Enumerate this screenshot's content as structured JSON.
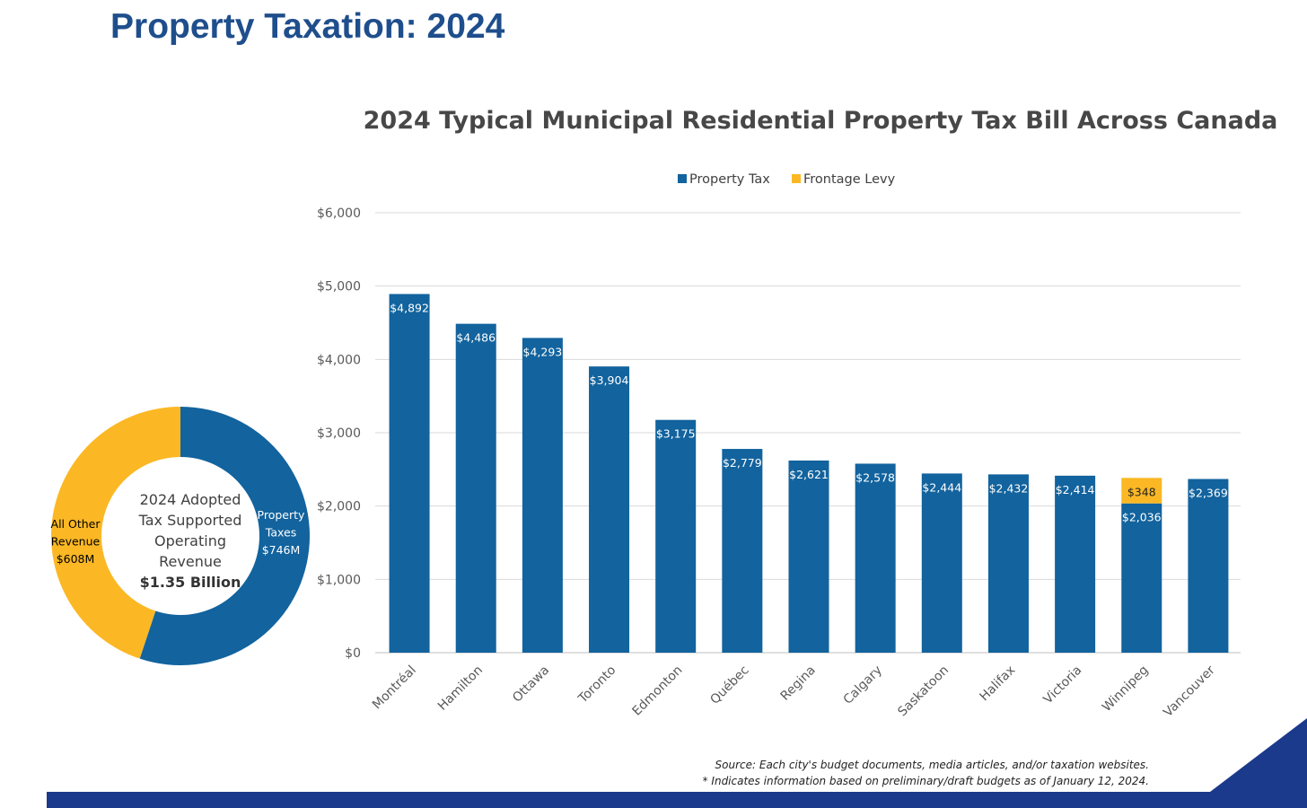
{
  "page": {
    "title": "Property Taxation: 2024"
  },
  "donut": {
    "center_lines": [
      "2024 Adopted",
      "Tax Supported",
      "Operating",
      "Revenue"
    ],
    "center_total": "$1.35 Billion",
    "segments": [
      {
        "label_lines": [
          "Property",
          "Taxes",
          "$746M"
        ],
        "value": 746,
        "color": "#12639e"
      },
      {
        "label_lines": [
          "All Other",
          "Revenue",
          "$608M"
        ],
        "value": 608,
        "color": "#fbb824"
      }
    ]
  },
  "chart_data": {
    "type": "bar",
    "stacked": true,
    "title": "2024 Typical Municipal Residential Property Tax Bill Across Canada",
    "xlabel": "",
    "ylabel": "",
    "ylim": [
      0,
      6000
    ],
    "y_ticks": [
      "$0",
      "$1,000",
      "$2,000",
      "$3,000",
      "$4,000",
      "$5,000",
      "$6,000"
    ],
    "grid": true,
    "legend_position": "top-center",
    "categories": [
      "Montréal",
      "Hamilton",
      "Ottawa",
      "Toronto",
      "Edmonton",
      "Québec",
      "Regina",
      "Calgary",
      "Saskatoon",
      "Halifax",
      "Victoria",
      "Winnipeg",
      "Vancouver"
    ],
    "series": [
      {
        "name": "Property Tax",
        "color": "#12639e",
        "values": [
          4892,
          4486,
          4293,
          3904,
          3175,
          2779,
          2621,
          2578,
          2444,
          2432,
          2414,
          2036,
          2369
        ],
        "labels": [
          "$4,892",
          "$4,486",
          "$4,293",
          "$3,904",
          "$3,175",
          "$2,779",
          "$2,621",
          "$2,578",
          "$2,444",
          "$2,432",
          "$2,414",
          "$2,036",
          "$2,369"
        ]
      },
      {
        "name": "Frontage Levy",
        "color": "#fbb824",
        "values": [
          0,
          0,
          0,
          0,
          0,
          0,
          0,
          0,
          0,
          0,
          0,
          348,
          0
        ],
        "labels": [
          "",
          "",
          "",
          "",
          "",
          "",
          "",
          "",
          "",
          "",
          "",
          "$348",
          ""
        ]
      }
    ]
  },
  "footer": {
    "source": "Source: Each city's budget documents, media articles, and/or taxation websites.",
    "note": "* Indicates information based on preliminary/draft budgets as of January 12, 2024."
  },
  "colors": {
    "title": "#1f4e8c",
    "accent_bar": "#1b3a8c",
    "property_tax": "#12639e",
    "frontage_levy": "#fbb824",
    "gridline": "#d9d9d9",
    "axis_text": "#595959"
  }
}
